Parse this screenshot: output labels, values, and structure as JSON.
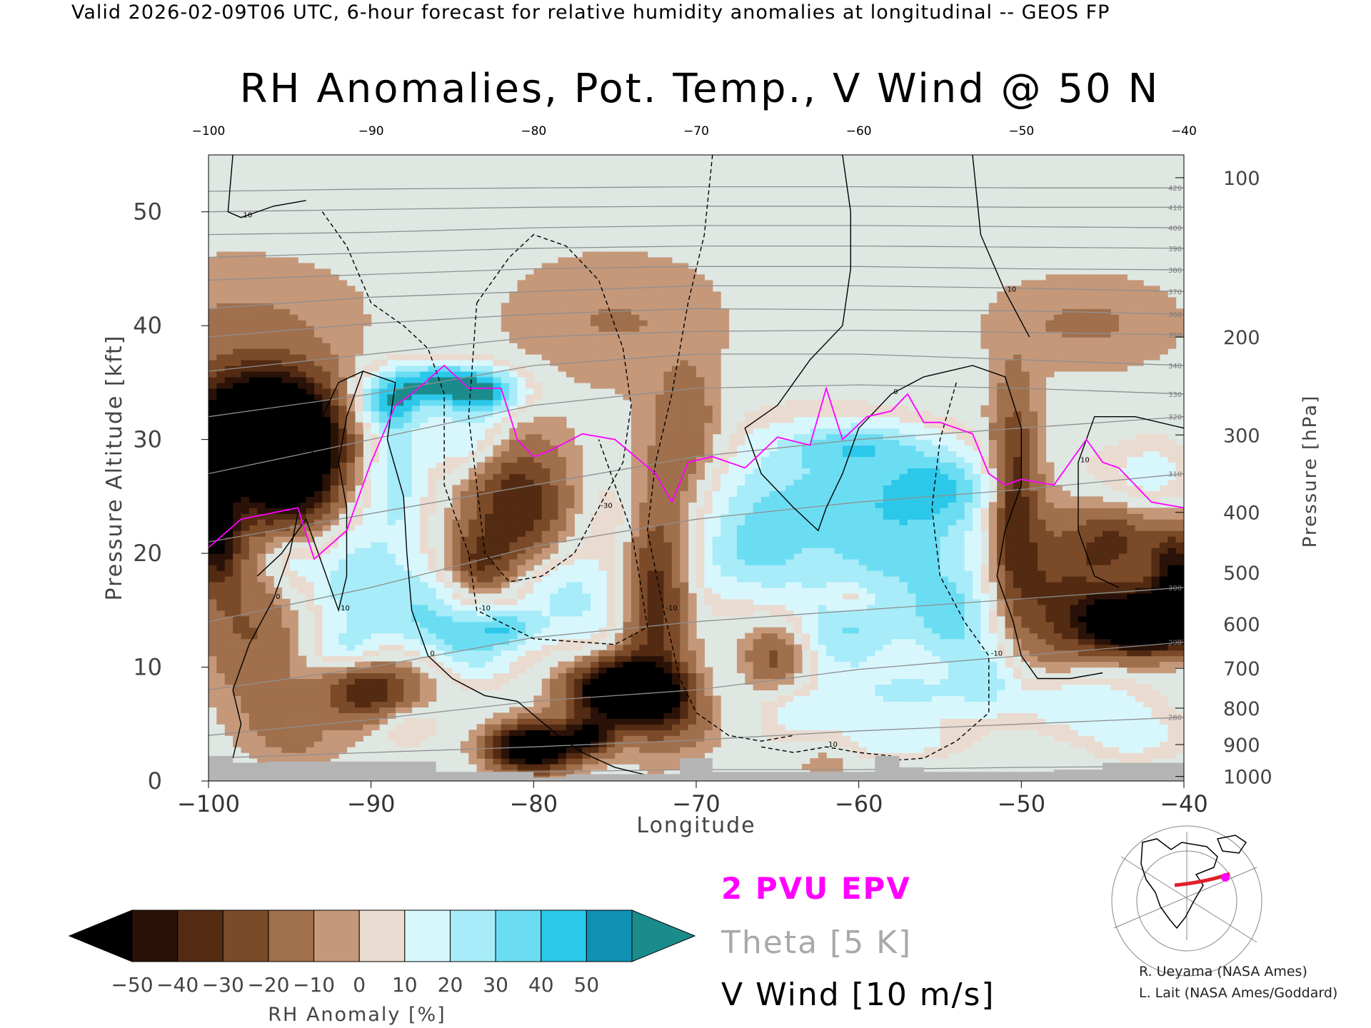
{
  "header": {
    "valid_line": "Valid 2026-02-09T06 UTC, 6-hour forecast for relative humidity anomalies at longitudinal -- GEOS FP",
    "title": "RH Anomalies, Pot. Temp., V Wind @ 50 N"
  },
  "chart_data": {
    "type": "heatmap",
    "title": "RH Anomalies, Pot. Temp., V Wind @ 50 N",
    "xlabel": "Longitude",
    "ylabel": "Pressure Altitude [kft]",
    "y2label": "Pressure [hPa]",
    "xlim": [
      -100,
      -40
    ],
    "ylim": [
      0,
      55
    ],
    "x_ticks": [
      -100,
      -90,
      -80,
      -70,
      -60,
      -50,
      -40
    ],
    "x_ticks_top": [
      -100,
      -90,
      -80,
      -70,
      -60,
      -50,
      -40
    ],
    "y_ticks": [
      0,
      10,
      20,
      30,
      40,
      50
    ],
    "pressure_ticks": [
      {
        "hPa": 100,
        "kft": 53
      },
      {
        "hPa": 200,
        "kft": 39
      },
      {
        "hPa": 300,
        "kft": 30.4
      },
      {
        "hPa": 400,
        "kft": 23.6
      },
      {
        "hPa": 500,
        "kft": 18.3
      },
      {
        "hPa": 600,
        "kft": 13.8
      },
      {
        "hPa": 700,
        "kft": 9.9
      },
      {
        "hPa": 800,
        "kft": 6.4
      },
      {
        "hPa": 900,
        "kft": 3.2
      },
      {
        "hPa": 1000,
        "kft": 0.4
      }
    ],
    "colorbar": {
      "label": "RH Anomaly [%]",
      "ticks": [
        -50,
        -40,
        -30,
        -20,
        -10,
        0,
        10,
        20,
        30,
        40,
        50
      ],
      "colors": [
        "#2a1208",
        "#532b12",
        "#7b4a28",
        "#a06f4c",
        "#c5987a",
        "#eadbd0",
        "#d8f7fd",
        "#a7ecf8",
        "#6bddf3",
        "#2cc8ea",
        "#1090b5"
      ],
      "under_color": "#000000",
      "over_color": "#1a8c8c"
    },
    "theta_contours": [
      {
        "label": "270",
        "kft": [
          0.5,
          0.6,
          0.8,
          1.0,
          1.0,
          1.2,
          1.3
        ]
      },
      {
        "label": "280",
        "kft": [
          2.0,
          2.5,
          3.0,
          3.6,
          4.4,
          5.0,
          5.6
        ]
      },
      {
        "label": "290",
        "kft": [
          4.0,
          5.4,
          7.0,
          8.0,
          9.8,
          11.0,
          12.2
        ]
      },
      {
        "label": "300",
        "kft": [
          8.0,
          10.0,
          12.6,
          14.0,
          15.0,
          16.0,
          17.0
        ]
      },
      {
        "label": "310",
        "kft": [
          14.0,
          17.0,
          20.6,
          23.0,
          24.5,
          25.6,
          27.0
        ]
      },
      {
        "label": "320",
        "kft": [
          21.0,
          23.5,
          26.0,
          28.5,
          30.0,
          31.0,
          32.0
        ]
      },
      {
        "label": "330",
        "kft": [
          27.0,
          30.0,
          33.0,
          34.5,
          34.8,
          34.5,
          34.0
        ]
      },
      {
        "label": "340",
        "kft": [
          32.0,
          34.0,
          36.5,
          37.5,
          37.5,
          37.0,
          36.5
        ]
      },
      {
        "label": "350",
        "kft": [
          36.0,
          37.5,
          39.0,
          39.5,
          39.6,
          39.4,
          39.2
        ]
      },
      {
        "label": "360",
        "kft": [
          39.0,
          40.2,
          41.0,
          41.5,
          41.4,
          41.3,
          41.0
        ]
      },
      {
        "label": "370",
        "kft": [
          41.5,
          42.5,
          43.0,
          43.5,
          43.5,
          43.3,
          43.0
        ]
      },
      {
        "label": "380",
        "kft": [
          44.0,
          44.5,
          45.0,
          45.2,
          45.2,
          45.0,
          44.9
        ]
      },
      {
        "label": "390",
        "kft": [
          46.0,
          46.4,
          46.8,
          47.0,
          47.0,
          46.9,
          46.8
        ]
      },
      {
        "label": "400",
        "kft": [
          48.0,
          48.2,
          48.6,
          48.8,
          48.8,
          48.7,
          48.6
        ]
      },
      {
        "label": "410",
        "kft": [
          50.0,
          50.2,
          50.4,
          50.5,
          50.5,
          50.4,
          50.4
        ]
      },
      {
        "label": "420",
        "kft": [
          51.8,
          52.0,
          52.1,
          52.2,
          52.2,
          52.1,
          52.1
        ]
      }
    ],
    "theta_x": [
      -100,
      -90,
      -80,
      -70,
      -60,
      -50,
      -40
    ],
    "vwind_contours": [
      {
        "label": "10",
        "style": "solid",
        "points": [
          [
            -98.5,
            55
          ],
          [
            -98.8,
            50
          ],
          [
            -98,
            49.5
          ],
          [
            -96,
            50.5
          ],
          [
            -94,
            51
          ]
        ]
      },
      {
        "label": "0",
        "style": "solid",
        "points": [
          [
            -92,
            35
          ],
          [
            -90.5,
            36
          ],
          [
            -88.5,
            35
          ],
          [
            -89,
            30
          ],
          [
            -88,
            25
          ],
          [
            -87.8,
            20
          ],
          [
            -87.5,
            15
          ],
          [
            -86.5,
            11
          ],
          [
            -85,
            9
          ],
          [
            -83,
            7.5
          ],
          [
            -81,
            7
          ],
          [
            -78.5,
            4
          ],
          [
            -77,
            2.5
          ],
          [
            -75,
            1.2
          ],
          [
            -73,
            0.5
          ]
        ]
      },
      {
        "label": "0",
        "style": "solid",
        "points": [
          [
            -92,
            35
          ],
          [
            -93,
            32
          ],
          [
            -94,
            27
          ],
          [
            -95,
            20
          ],
          [
            -96,
            16
          ],
          [
            -97.5,
            12
          ],
          [
            -98.5,
            8
          ],
          [
            -98,
            5
          ],
          [
            -98.5,
            2
          ]
        ]
      },
      {
        "label": "10",
        "style": "solid",
        "points": [
          [
            -90.5,
            36
          ],
          [
            -91.5,
            32
          ],
          [
            -92,
            28
          ],
          [
            -91.5,
            24
          ],
          [
            -91.5,
            18
          ],
          [
            -92,
            15
          ],
          [
            -93,
            19
          ],
          [
            -94,
            23
          ],
          [
            -95.5,
            20
          ],
          [
            -97,
            18
          ]
        ]
      },
      {
        "label": "0",
        "style": "solid",
        "points": [
          [
            -61,
            55
          ],
          [
            -60.5,
            50
          ],
          [
            -60.5,
            45
          ],
          [
            -61,
            40
          ],
          [
            -63,
            37
          ],
          [
            -65,
            33
          ],
          [
            -67,
            31
          ],
          [
            -66,
            27
          ],
          [
            -64,
            24
          ],
          [
            -62.5,
            22
          ],
          [
            -62,
            24
          ],
          [
            -61,
            27
          ],
          [
            -60,
            31
          ],
          [
            -58,
            34
          ],
          [
            -56,
            35.5
          ],
          [
            -53,
            36.5
          ],
          [
            -51,
            35.5
          ],
          [
            -50,
            31
          ],
          [
            -50,
            26
          ],
          [
            -51,
            22
          ],
          [
            -51.5,
            18
          ],
          [
            -50.5,
            14
          ],
          [
            -50,
            11
          ],
          [
            -49,
            9
          ],
          [
            -47,
            9
          ],
          [
            -45,
            9.5
          ]
        ]
      },
      {
        "label": "10",
        "style": "solid",
        "points": [
          [
            -53,
            55
          ],
          [
            -52.5,
            48
          ],
          [
            -51,
            43
          ],
          [
            -49.5,
            39
          ]
        ]
      },
      {
        "label": "10",
        "style": "solid",
        "points": [
          [
            -40,
            31
          ],
          [
            -43,
            32
          ],
          [
            -45.5,
            32
          ],
          [
            -46.5,
            28
          ],
          [
            -46.5,
            22
          ],
          [
            -45.5,
            18
          ],
          [
            -44,
            17
          ]
        ]
      },
      {
        "label": "-10",
        "style": "dashed",
        "points": [
          [
            -93,
            50
          ],
          [
            -91.5,
            47
          ],
          [
            -90,
            42
          ],
          [
            -88,
            40
          ],
          [
            -86.5,
            38
          ],
          [
            -85.5,
            34
          ],
          [
            -85.5,
            26
          ],
          [
            -84,
            20
          ],
          [
            -83.5,
            15
          ],
          [
            -80,
            12.5
          ],
          [
            -75,
            12
          ],
          [
            -73,
            13.5
          ],
          [
            -73.5,
            18
          ],
          [
            -74,
            22
          ],
          [
            -75,
            26
          ],
          [
            -76,
            30
          ]
        ]
      },
      {
        "label": "-30",
        "style": "dashed",
        "points": [
          [
            -83.5,
            42
          ],
          [
            -81.5,
            46
          ],
          [
            -80,
            48
          ],
          [
            -78,
            47
          ],
          [
            -76,
            44
          ],
          [
            -74.5,
            38
          ],
          [
            -74,
            33
          ],
          [
            -74.5,
            28
          ],
          [
            -76,
            24
          ],
          [
            -77.5,
            20
          ],
          [
            -79.5,
            18
          ],
          [
            -81.5,
            17.5
          ],
          [
            -83,
            20
          ],
          [
            -83.5,
            26
          ],
          [
            -84,
            32
          ],
          [
            -83.5,
            42
          ]
        ]
      },
      {
        "label": "-10",
        "style": "dashed",
        "points": [
          [
            -69,
            55
          ],
          [
            -69.5,
            48
          ],
          [
            -70.5,
            42
          ],
          [
            -71.5,
            34
          ],
          [
            -72.5,
            28
          ],
          [
            -73,
            22
          ],
          [
            -72,
            15
          ],
          [
            -71,
            9
          ],
          [
            -70,
            6
          ],
          [
            -68,
            4
          ],
          [
            -66,
            3.5
          ],
          [
            -64,
            4
          ]
        ]
      },
      {
        "label": "-10",
        "style": "dashed",
        "points": [
          [
            -54,
            35
          ],
          [
            -55,
            30
          ],
          [
            -55.5,
            24
          ],
          [
            -55,
            18
          ],
          [
            -53.5,
            14
          ],
          [
            -52,
            11
          ],
          [
            -52,
            6
          ],
          [
            -54,
            3.5
          ],
          [
            -56,
            2
          ],
          [
            -58,
            1.8
          ]
        ]
      },
      {
        "label": "10",
        "style": "dashed",
        "points": [
          [
            -66,
            3
          ],
          [
            -64,
            2.5
          ],
          [
            -62,
            3
          ],
          [
            -60,
            2.5
          ],
          [
            -58,
            2.2
          ]
        ]
      }
    ],
    "epv_2pvu_contour": {
      "label": "2 PVU EPV",
      "kft": [
        [
          -100,
          20.5
        ],
        [
          -98,
          23
        ],
        [
          -94.5,
          24
        ],
        [
          -93.5,
          19.5
        ],
        [
          -91.5,
          22
        ],
        [
          -90,
          28
        ],
        [
          -88.5,
          33
        ],
        [
          -87.5,
          34
        ],
        [
          -85.5,
          36.5
        ],
        [
          -84,
          34.5
        ],
        [
          -82,
          34.5
        ],
        [
          -81,
          30
        ],
        [
          -80,
          28.5
        ],
        [
          -79,
          29
        ],
        [
          -77,
          30.5
        ],
        [
          -75,
          30
        ],
        [
          -72.5,
          27
        ],
        [
          -71.5,
          24.5
        ],
        [
          -70.5,
          28
        ],
        [
          -69,
          28.5
        ],
        [
          -67,
          27.5
        ],
        [
          -65,
          30.2
        ],
        [
          -63,
          29.5
        ],
        [
          -62,
          34.5
        ],
        [
          -61,
          30
        ],
        [
          -59.5,
          32
        ],
        [
          -58,
          32.5
        ],
        [
          -57,
          34
        ],
        [
          -56,
          31.5
        ],
        [
          -55,
          31.5
        ],
        [
          -53,
          30.5
        ],
        [
          -52,
          27
        ],
        [
          -51,
          26
        ],
        [
          -50,
          26.5
        ],
        [
          -48,
          26
        ],
        [
          -46,
          30
        ],
        [
          -45,
          28
        ],
        [
          -44,
          27.5
        ],
        [
          -42,
          24.5
        ],
        [
          -40,
          24
        ]
      ]
    },
    "topography": {
      "color": "#b4b4b4",
      "kft": [
        [
          -100,
          2.2
        ],
        [
          -98.5,
          2.2
        ],
        [
          -98.5,
          1.6
        ],
        [
          -96.5,
          1.6
        ],
        [
          -96.5,
          1.7
        ],
        [
          -86,
          1.7
        ],
        [
          -86,
          0.8
        ],
        [
          -80,
          0.8
        ],
        [
          -80,
          0.3
        ],
        [
          -78,
          0.3
        ],
        [
          -78,
          0.6
        ],
        [
          -71,
          0.6
        ],
        [
          -71,
          2.0
        ],
        [
          -69,
          2.0
        ],
        [
          -69,
          0.8
        ],
        [
          -59,
          0.8
        ],
        [
          -59,
          2.2
        ],
        [
          -57.5,
          2.2
        ],
        [
          -57.5,
          1.2
        ],
        [
          -56,
          1.2
        ],
        [
          -56,
          0.8
        ],
        [
          -48,
          0.8
        ],
        [
          -48,
          1.0
        ],
        [
          -45,
          1.0
        ],
        [
          -45,
          1.6
        ],
        [
          -40,
          1.6
        ]
      ]
    },
    "rh_anomaly_grid": {
      "x": [
        -100,
        -98,
        -96,
        -94,
        -92,
        -90,
        -88,
        -86,
        -84,
        -82,
        -80,
        -78,
        -76,
        -74,
        -72,
        -70,
        -68,
        -66,
        -64,
        -62,
        -60,
        -58,
        -56,
        -54,
        -52,
        -50,
        -48,
        -46,
        -44,
        -42,
        -40
      ],
      "y": [
        1,
        3,
        5,
        7,
        9,
        11,
        13,
        15,
        17,
        19,
        21,
        23,
        25,
        27,
        29,
        31,
        33,
        35,
        37,
        39,
        41,
        43,
        45,
        47,
        49,
        51,
        53,
        55
      ]
    }
  },
  "legend": {
    "epv": "2 PVU EPV",
    "theta": "Theta [5 K]",
    "vwind": "V Wind [10 m/s]",
    "epv_color": "#ff00ff",
    "theta_color": "#a9a9a9"
  },
  "credits": {
    "line1": "R. Ueyama (NASA Ames)",
    "line2": "L. Lait (NASA Ames/Goddard)"
  }
}
